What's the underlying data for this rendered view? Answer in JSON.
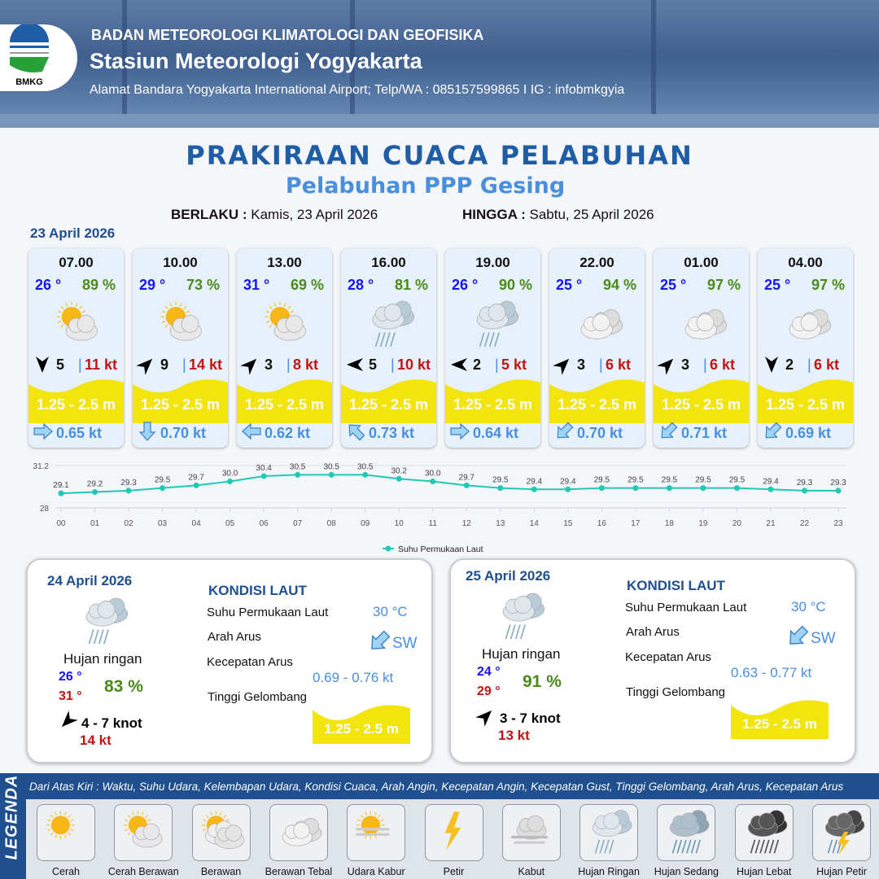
{
  "header": {
    "org": "BADAN METEOROLOGI KLIMATOLOGI DAN GEOFISIKA",
    "station": "Stasiun Meteorologi Yogyakarta",
    "address": "Alamat Bandara Yogyakarta International Airport; Telp/WA : 085157599865 I IG : infobmkgyia",
    "logo_text": "BMKG"
  },
  "title": "PRAKIRAAN CUACA PELABUHAN",
  "subtitle": "Pelabuhan PPP Gesing",
  "validity": {
    "from_label": "BERLAKU :",
    "from": "Kamis, 23 April 2026",
    "to_label": "HINGGA :",
    "to": "Sabtu, 25 April 2026"
  },
  "day1": {
    "date": "23 April 2026",
    "cards": [
      {
        "time": "07.00",
        "temp": "26 °",
        "hum": "89 %",
        "icon": "cerah-berawan",
        "wind_dir": "S",
        "wind": "5",
        "gust": "11 kt",
        "wave": "1.25 - 2.5 m",
        "cur_dir": "E",
        "cur": "0.65 kt"
      },
      {
        "time": "10.00",
        "temp": "29 °",
        "hum": "73 %",
        "icon": "cerah-berawan",
        "wind_dir": "NE",
        "wind": "9",
        "gust": "14 kt",
        "wave": "1.25 - 2.5 m",
        "cur_dir": "S",
        "cur": "0.70 kt"
      },
      {
        "time": "13.00",
        "temp": "31 °",
        "hum": "69 %",
        "icon": "cerah-berawan",
        "wind_dir": "NE",
        "wind": "3",
        "gust": "8 kt",
        "wave": "1.25 - 2.5 m",
        "cur_dir": "W",
        "cur": "0.62 kt"
      },
      {
        "time": "16.00",
        "temp": "28 °",
        "hum": "81 %",
        "icon": "hujan-ringan",
        "wind_dir": "W",
        "wind": "5",
        "gust": "10 kt",
        "wave": "1.25 - 2.5 m",
        "cur_dir": "NW",
        "cur": "0.73 kt"
      },
      {
        "time": "19.00",
        "temp": "26 °",
        "hum": "90 %",
        "icon": "hujan-ringan",
        "wind_dir": "W",
        "wind": "2",
        "gust": "5 kt",
        "wave": "1.25 - 2.5 m",
        "cur_dir": "E",
        "cur": "0.64 kt"
      },
      {
        "time": "22.00",
        "temp": "25 °",
        "hum": "94 %",
        "icon": "berawan-tebal",
        "wind_dir": "NE",
        "wind": "3",
        "gust": "6 kt",
        "wave": "1.25 - 2.5 m",
        "cur_dir": "SW",
        "cur": "0.70 kt"
      },
      {
        "time": "01.00",
        "temp": "25 °",
        "hum": "97 %",
        "icon": "berawan-tebal",
        "wind_dir": "NE",
        "wind": "3",
        "gust": "6 kt",
        "wave": "1.25 - 2.5 m",
        "cur_dir": "SW",
        "cur": "0.71 kt"
      },
      {
        "time": "04.00",
        "temp": "25 °",
        "hum": "97 %",
        "icon": "berawan-tebal",
        "wind_dir": "S",
        "wind": "2",
        "gust": "6 kt",
        "wave": "1.25 - 2.5 m",
        "cur_dir": "SW",
        "cur": "0.69 kt"
      }
    ]
  },
  "chart_data": {
    "type": "line",
    "categories": [
      "00",
      "01",
      "02",
      "03",
      "04",
      "05",
      "06",
      "07",
      "08",
      "09",
      "10",
      "11",
      "12",
      "13",
      "14",
      "15",
      "16",
      "17",
      "18",
      "19",
      "20",
      "21",
      "22",
      "23"
    ],
    "series": [
      {
        "name": "Suhu Permukaan Laut",
        "values": [
          29.1,
          29.2,
          29.3,
          29.5,
          29.7,
          30.0,
          30.4,
          30.5,
          30.5,
          30.5,
          30.2,
          30.0,
          29.7,
          29.5,
          29.4,
          29.4,
          29.5,
          29.5,
          29.5,
          29.5,
          29.5,
          29.4,
          29.3,
          29.3
        ]
      }
    ],
    "ylim": [
      28,
      31.2
    ],
    "yticks": [
      "31.2",
      "28"
    ],
    "color": "#20c9b5",
    "grid": true,
    "legend": "bottom"
  },
  "panels": [
    {
      "date": "24 April 2026",
      "condition": "Hujan ringan",
      "icon": "hujan-ringan",
      "tmin": "26 °",
      "tmax": "31 °",
      "hum": "83 %",
      "wind_dir": "SW",
      "wind": "4 - 7 knot",
      "gust": "14 kt",
      "sea_title": "KONDISI LAUT",
      "sst_label": "Suhu Permukaan Laut",
      "sst": "30 °C",
      "cur_dir_label": "Arah Arus",
      "cur_dir": "SW",
      "cur_speed_label": "Kecepatan Arus",
      "cur_speed": "0.69 - 0.76 kt",
      "wave_label": "Tinggi Gelombang",
      "wave": "1.25 - 2.5 m"
    },
    {
      "date": "25 April 2026",
      "condition": "Hujan ringan",
      "icon": "hujan-ringan",
      "tmin": "24 °",
      "tmax": "29 °",
      "hum": "91 %",
      "wind_dir": "NE",
      "wind": "3 - 7 knot",
      "gust": "13 kt",
      "sea_title": "KONDISI LAUT",
      "sst_label": "Suhu Permukaan Laut",
      "sst": "30 °C",
      "cur_dir_label": "Arah Arus",
      "cur_dir": "SW",
      "cur_speed_label": "Kecepatan Arus",
      "cur_speed": "0.63 - 0.77 kt",
      "wave_label": "Tinggi Gelombang",
      "wave": "1.25 - 2.5 m"
    }
  ],
  "legend": {
    "title": "LEGENDA",
    "description": "Dari Atas Kiri : Waktu, Suhu Udara, Kelembapan Udara, Kondisi Cuaca, Arah Angin, Kecepatan Angin, Kecepatan Gust, Tinggi Gelombang, Arah Arus, Kecepatan Arus",
    "items": [
      {
        "label": "Cerah",
        "icon": "cerah"
      },
      {
        "label": "Cerah Berawan",
        "icon": "cerah-berawan"
      },
      {
        "label": "Berawan",
        "icon": "berawan"
      },
      {
        "label": "Berawan Tebal",
        "icon": "berawan-tebal"
      },
      {
        "label": "Udara Kabur",
        "icon": "udara-kabur"
      },
      {
        "label": "Petir",
        "icon": "petir"
      },
      {
        "label": "Kabut",
        "icon": "kabut"
      },
      {
        "label": "Hujan Ringan",
        "icon": "hujan-ringan"
      },
      {
        "label": "Hujan Sedang",
        "icon": "hujan-sedang"
      },
      {
        "label": "Hujan Lebat",
        "icon": "hujan-lebat"
      },
      {
        "label": "Hujan Petir",
        "icon": "hujan-petir"
      }
    ]
  },
  "colors": {
    "brand": "#1f5ea6",
    "temp": "#1515f0",
    "humidity": "#4a8a1a",
    "gust": "#c01515",
    "wave": "#f2e40c",
    "current": "#4a8fdc"
  }
}
